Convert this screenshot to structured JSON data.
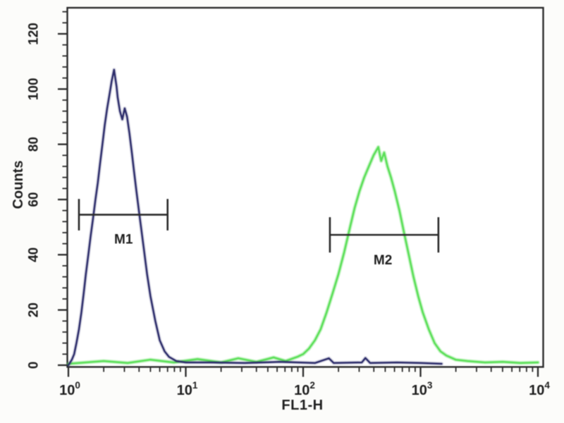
{
  "chart_data": {
    "type": "line",
    "subtype": "flow-cytometry-histogram-overlay",
    "title": "",
    "xlabel": "FL1-H",
    "ylabel": "Counts",
    "x_scale": "log10",
    "xlim": [
      1,
      10000
    ],
    "ylim": [
      0,
      120
    ],
    "grid": false,
    "legend_position": "none",
    "x_ticks": [
      {
        "value": 1,
        "base": "10",
        "exp": "0"
      },
      {
        "value": 10,
        "base": "10",
        "exp": "1"
      },
      {
        "value": 100,
        "base": "10",
        "exp": "2"
      },
      {
        "value": 1000,
        "base": "10",
        "exp": "3"
      },
      {
        "value": 10000,
        "base": "10",
        "exp": "4"
      }
    ],
    "y_ticks": [
      0,
      20,
      40,
      60,
      80,
      100,
      120
    ],
    "y_minor_step": 4,
    "y_minor_max": 128,
    "series": [
      {
        "name": "M2 population (green)",
        "color": "#5bdf58",
        "halo_opacity": 0.35,
        "points": [
          [
            1,
            0.5
          ],
          [
            2,
            1.5
          ],
          [
            3.2,
            0.8
          ],
          [
            5,
            2
          ],
          [
            7.9,
            1
          ],
          [
            12.6,
            2.2
          ],
          [
            20,
            1
          ],
          [
            28,
            2.5
          ],
          [
            40,
            1.2
          ],
          [
            56,
            2.8
          ],
          [
            71,
            1.5
          ],
          [
            89,
            3
          ],
          [
            100,
            4
          ],
          [
            112,
            6
          ],
          [
            126,
            9
          ],
          [
            141,
            13
          ],
          [
            158,
            19
          ],
          [
            178,
            26
          ],
          [
            200,
            33
          ],
          [
            224,
            41
          ],
          [
            251,
            50
          ],
          [
            275,
            57
          ],
          [
            302,
            63
          ],
          [
            331,
            68
          ],
          [
            363,
            72
          ],
          [
            398,
            76
          ],
          [
            437,
            79
          ],
          [
            462,
            74
          ],
          [
            490,
            77
          ],
          [
            523,
            72
          ],
          [
            560,
            68
          ],
          [
            603,
            63
          ],
          [
            661,
            56
          ],
          [
            724,
            48
          ],
          [
            794,
            40
          ],
          [
            871,
            32
          ],
          [
            955,
            25
          ],
          [
            1047,
            19
          ],
          [
            1175,
            13
          ],
          [
            1318,
            8
          ],
          [
            1479,
            5
          ],
          [
            1660,
            3.5
          ],
          [
            1995,
            2
          ],
          [
            2512,
            1.5
          ],
          [
            3548,
            1
          ],
          [
            5012,
            1.2
          ],
          [
            7079,
            0.8
          ],
          [
            10000,
            1
          ]
        ]
      },
      {
        "name": "M1 population (navy)",
        "color": "#2d2d6b",
        "halo_opacity": 0.18,
        "points": [
          [
            1,
            0
          ],
          [
            1.07,
            2
          ],
          [
            1.12,
            4
          ],
          [
            1.17,
            8
          ],
          [
            1.23,
            13
          ],
          [
            1.29,
            19
          ],
          [
            1.35,
            26
          ],
          [
            1.41,
            33
          ],
          [
            1.48,
            40
          ],
          [
            1.55,
            47
          ],
          [
            1.62,
            53
          ],
          [
            1.7,
            60
          ],
          [
            1.78,
            66
          ],
          [
            1.86,
            73
          ],
          [
            1.95,
            80
          ],
          [
            2.04,
            87
          ],
          [
            2.14,
            93
          ],
          [
            2.24,
            98
          ],
          [
            2.34,
            103
          ],
          [
            2.45,
            107
          ],
          [
            2.51,
            104
          ],
          [
            2.57,
            101
          ],
          [
            2.63,
            97
          ],
          [
            2.75,
            92
          ],
          [
            2.88,
            89
          ],
          [
            3.02,
            93
          ],
          [
            3.16,
            90
          ],
          [
            3.31,
            84
          ],
          [
            3.47,
            77
          ],
          [
            3.63,
            70
          ],
          [
            3.8,
            63
          ],
          [
            4.07,
            53
          ],
          [
            4.37,
            43
          ],
          [
            4.68,
            33
          ],
          [
            5.0,
            25
          ],
          [
            5.5,
            16
          ],
          [
            6.0,
            9
          ],
          [
            6.6,
            5
          ],
          [
            7.2,
            3
          ],
          [
            8.3,
            1.5
          ],
          [
            10,
            1
          ],
          [
            16,
            1
          ],
          [
            32,
            0.8
          ],
          [
            63,
            1.2
          ],
          [
            126,
            0.8
          ],
          [
            166,
            2.5
          ],
          [
            182,
            0.8
          ],
          [
            316,
            1
          ],
          [
            339,
            2.6
          ],
          [
            372,
            0.8
          ],
          [
            631,
            1
          ],
          [
            1000,
            0.8
          ],
          [
            1514,
            0.5
          ]
        ]
      }
    ],
    "markers": [
      {
        "label": "M1",
        "y_counts": 54.5,
        "x_from": 1.23,
        "x_to": 7.0,
        "cap_half_counts": 5.7,
        "label_x": 2.95,
        "label_y_counts": 44,
        "color": "#2a2a2a"
      },
      {
        "label": "M2",
        "y_counts": 47.2,
        "x_from": 169,
        "x_to": 1420,
        "cap_half_counts": 6.4,
        "label_x": 478,
        "label_y_counts": 36.5,
        "color": "#2a2a2a"
      }
    ]
  },
  "colors": {
    "background": "#fcfcfa",
    "plot_background": "#ffffff",
    "axis": "#2b2b2b",
    "text": "#1f1f1f",
    "m1_curve": "#2d2d6b",
    "m2_curve": "#5bdf58"
  }
}
